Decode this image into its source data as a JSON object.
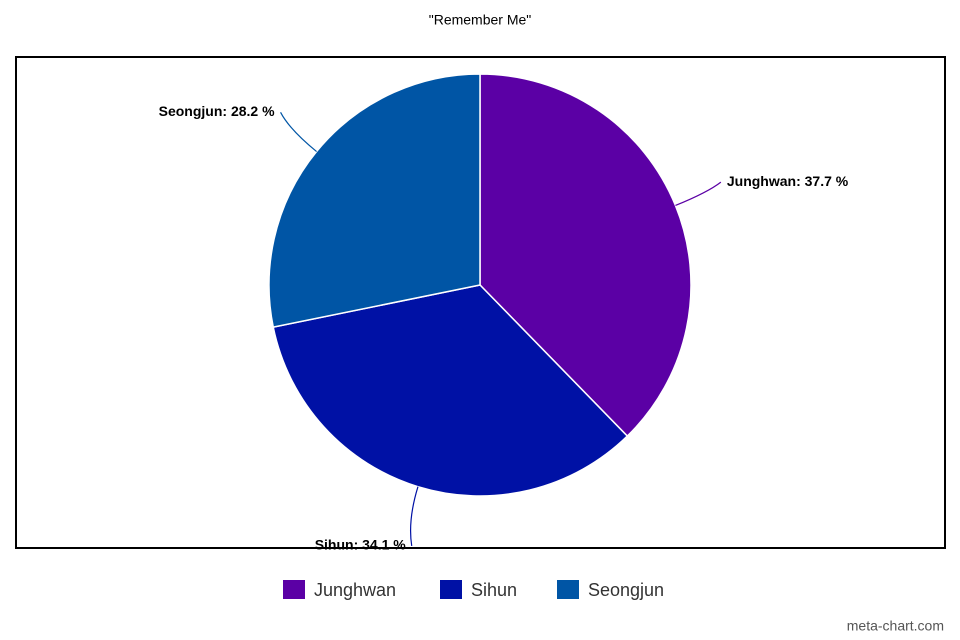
{
  "chart_data": {
    "type": "pie",
    "title": "\"Remember Me\"",
    "categories": [
      "Junghwan",
      "Sihun",
      "Seongjun"
    ],
    "values": [
      37.7,
      34.1,
      28.2
    ],
    "value_labels": [
      "Junghwan: 37.7 %",
      "Sihun: 34.1 %",
      "Seongjun: 28.2 %"
    ],
    "colors": [
      "#5b00a5",
      "#0011a5",
      "#0055a5"
    ],
    "watermark": "meta-chart.com"
  }
}
